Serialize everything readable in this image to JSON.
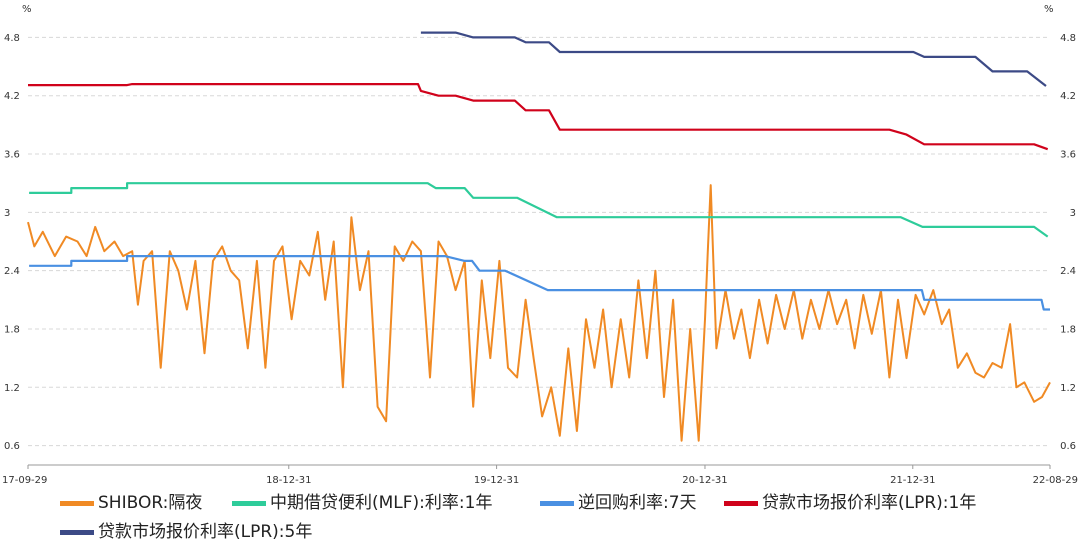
{
  "chart_data": {
    "type": "line",
    "units": {
      "left": "%",
      "right": "%"
    },
    "x_ticks": [
      "17-09-29",
      "18-12-31",
      "19-12-31",
      "20-12-31",
      "21-12-31",
      "22-08-29"
    ],
    "y_ticks": [
      "0.6",
      "1.2",
      "1.8",
      "2.4",
      "3",
      "3.6",
      "4.2",
      "4.8"
    ],
    "ylim": [
      0.4,
      5.0
    ],
    "grid": true,
    "legend_position": "bottom",
    "series": [
      {
        "name": "SHIBOR:隔夜",
        "color": "#f08a24",
        "points": [
          [
            "2017-09-29",
            2.9
          ],
          [
            "2017-10-10",
            2.65
          ],
          [
            "2017-10-25",
            2.8
          ],
          [
            "2017-11-15",
            2.55
          ],
          [
            "2017-12-05",
            2.75
          ],
          [
            "2017-12-25",
            2.7
          ],
          [
            "2018-01-10",
            2.55
          ],
          [
            "2018-01-25",
            2.85
          ],
          [
            "2018-02-10",
            2.6
          ],
          [
            "2018-02-28",
            2.7
          ],
          [
            "2018-03-15",
            2.55
          ],
          [
            "2018-03-31",
            2.6
          ],
          [
            "2018-04-10",
            2.05
          ],
          [
            "2018-04-20",
            2.5
          ],
          [
            "2018-05-05",
            2.6
          ],
          [
            "2018-05-20",
            1.4
          ],
          [
            "2018-06-05",
            2.6
          ],
          [
            "2018-06-20",
            2.4
          ],
          [
            "2018-07-05",
            2.0
          ],
          [
            "2018-07-20",
            2.5
          ],
          [
            "2018-08-05",
            1.55
          ],
          [
            "2018-08-20",
            2.5
          ],
          [
            "2018-09-05",
            2.65
          ],
          [
            "2018-09-20",
            2.4
          ],
          [
            "2018-10-05",
            2.3
          ],
          [
            "2018-10-20",
            1.6
          ],
          [
            "2018-11-05",
            2.5
          ],
          [
            "2018-11-20",
            1.4
          ],
          [
            "2018-12-05",
            2.5
          ],
          [
            "2018-12-20",
            2.65
          ],
          [
            "2019-01-05",
            1.9
          ],
          [
            "2019-01-20",
            2.5
          ],
          [
            "2019-02-05",
            2.35
          ],
          [
            "2019-02-20",
            2.8
          ],
          [
            "2019-03-05",
            2.1
          ],
          [
            "2019-03-20",
            2.7
          ],
          [
            "2019-04-05",
            1.2
          ],
          [
            "2019-04-20",
            2.95
          ],
          [
            "2019-05-05",
            2.2
          ],
          [
            "2019-05-20",
            2.6
          ],
          [
            "2019-06-05",
            1.0
          ],
          [
            "2019-06-20",
            0.85
          ],
          [
            "2019-07-05",
            2.65
          ],
          [
            "2019-07-20",
            2.5
          ],
          [
            "2019-08-05",
            2.7
          ],
          [
            "2019-08-20",
            2.6
          ],
          [
            "2019-09-05",
            1.3
          ],
          [
            "2019-09-20",
            2.7
          ],
          [
            "2019-10-05",
            2.55
          ],
          [
            "2019-10-20",
            2.2
          ],
          [
            "2019-11-05",
            2.5
          ],
          [
            "2019-11-20",
            1.0
          ],
          [
            "2019-12-05",
            2.3
          ],
          [
            "2019-12-20",
            1.5
          ],
          [
            "2020-01-05",
            2.5
          ],
          [
            "2020-01-20",
            1.4
          ],
          [
            "2020-02-05",
            1.3
          ],
          [
            "2020-02-20",
            2.1
          ],
          [
            "2020-03-05",
            1.5
          ],
          [
            "2020-03-20",
            0.9
          ],
          [
            "2020-04-05",
            1.2
          ],
          [
            "2020-04-20",
            0.7
          ],
          [
            "2020-05-05",
            1.6
          ],
          [
            "2020-05-20",
            0.75
          ],
          [
            "2020-06-05",
            1.9
          ],
          [
            "2020-06-20",
            1.4
          ],
          [
            "2020-07-05",
            2.0
          ],
          [
            "2020-07-20",
            1.2
          ],
          [
            "2020-08-05",
            1.9
          ],
          [
            "2020-08-20",
            1.3
          ],
          [
            "2020-09-05",
            2.3
          ],
          [
            "2020-09-20",
            1.5
          ],
          [
            "2020-10-05",
            2.4
          ],
          [
            "2020-10-20",
            1.1
          ],
          [
            "2020-11-05",
            2.1
          ],
          [
            "2020-11-20",
            0.65
          ],
          [
            "2020-12-05",
            1.8
          ],
          [
            "2020-12-20",
            0.65
          ],
          [
            "2020-12-31",
            1.9
          ],
          [
            "2021-01-05",
            2.6
          ],
          [
            "2021-01-10",
            3.28
          ],
          [
            "2021-01-20",
            1.6
          ],
          [
            "2021-02-05",
            2.2
          ],
          [
            "2021-02-20",
            1.7
          ],
          [
            "2021-03-05",
            2.0
          ],
          [
            "2021-03-20",
            1.5
          ],
          [
            "2021-04-05",
            2.1
          ],
          [
            "2021-04-20",
            1.65
          ],
          [
            "2021-05-05",
            2.15
          ],
          [
            "2021-05-20",
            1.8
          ],
          [
            "2021-06-05",
            2.2
          ],
          [
            "2021-06-20",
            1.7
          ],
          [
            "2021-07-05",
            2.1
          ],
          [
            "2021-07-20",
            1.8
          ],
          [
            "2021-08-05",
            2.2
          ],
          [
            "2021-08-20",
            1.85
          ],
          [
            "2021-09-05",
            2.1
          ],
          [
            "2021-09-20",
            1.6
          ],
          [
            "2021-10-05",
            2.15
          ],
          [
            "2021-10-20",
            1.75
          ],
          [
            "2021-11-05",
            2.2
          ],
          [
            "2021-11-20",
            1.3
          ],
          [
            "2021-12-05",
            2.1
          ],
          [
            "2021-12-20",
            1.5
          ],
          [
            "2022-01-05",
            2.15
          ],
          [
            "2022-01-20",
            1.95
          ],
          [
            "2022-02-05",
            2.2
          ],
          [
            "2022-02-20",
            1.85
          ],
          [
            "2022-03-05",
            2.0
          ],
          [
            "2022-03-20",
            1.4
          ],
          [
            "2022-04-05",
            1.55
          ],
          [
            "2022-04-20",
            1.35
          ],
          [
            "2022-05-05",
            1.3
          ],
          [
            "2022-05-20",
            1.45
          ],
          [
            "2022-06-05",
            1.4
          ],
          [
            "2022-06-20",
            1.85
          ],
          [
            "2022-07-01",
            1.2
          ],
          [
            "2022-07-15",
            1.25
          ],
          [
            "2022-08-01",
            1.05
          ],
          [
            "2022-08-15",
            1.1
          ],
          [
            "2022-08-29",
            1.25
          ]
        ]
      },
      {
        "name": "中期借贷便利(MLF):利率:1年",
        "color": "#2ecc9a",
        "points": [
          [
            "2017-10-01",
            3.2
          ],
          [
            "2017-12-14",
            3.2
          ],
          [
            "2017-12-14",
            3.25
          ],
          [
            "2018-03-22",
            3.25
          ],
          [
            "2018-03-22",
            3.3
          ],
          [
            "2019-09-01",
            3.3
          ],
          [
            "2019-09-15",
            3.25
          ],
          [
            "2019-11-05",
            3.25
          ],
          [
            "2019-11-20",
            3.15
          ],
          [
            "2020-02-05",
            3.15
          ],
          [
            "2020-04-15",
            2.95
          ],
          [
            "2021-12-10",
            2.95
          ],
          [
            "2022-01-17",
            2.85
          ],
          [
            "2022-08-01",
            2.85
          ],
          [
            "2022-08-25",
            2.75
          ]
        ]
      },
      {
        "name": "逆回购利率:7天",
        "color": "#4a90e2",
        "points": [
          [
            "2017-10-01",
            2.45
          ],
          [
            "2017-12-14",
            2.45
          ],
          [
            "2017-12-14",
            2.5
          ],
          [
            "2018-03-22",
            2.5
          ],
          [
            "2018-03-22",
            2.55
          ],
          [
            "2019-10-01",
            2.55
          ],
          [
            "2019-11-05",
            2.5
          ],
          [
            "2019-11-18",
            2.5
          ],
          [
            "2019-12-01",
            2.4
          ],
          [
            "2020-01-15",
            2.4
          ],
          [
            "2020-03-30",
            2.2
          ],
          [
            "2022-01-16",
            2.2
          ],
          [
            "2022-01-20",
            2.1
          ],
          [
            "2022-08-14",
            2.1
          ],
          [
            "2022-08-18",
            2.0
          ],
          [
            "2022-08-29",
            2.0
          ]
        ]
      },
      {
        "name": "贷款市场报价利率(LPR):1年",
        "color": "#d0021b",
        "points": [
          [
            "2017-09-29",
            4.31
          ],
          [
            "2018-03-22",
            4.31
          ],
          [
            "2018-03-31",
            4.32
          ],
          [
            "2019-08-15",
            4.32
          ],
          [
            "2019-08-20",
            4.25
          ],
          [
            "2019-09-20",
            4.2
          ],
          [
            "2019-10-20",
            4.2
          ],
          [
            "2019-11-20",
            4.15
          ],
          [
            "2020-02-01",
            4.15
          ],
          [
            "2020-02-20",
            4.05
          ],
          [
            "2020-04-01",
            4.05
          ],
          [
            "2020-04-20",
            3.85
          ],
          [
            "2021-11-20",
            3.85
          ],
          [
            "2021-12-20",
            3.8
          ],
          [
            "2022-01-20",
            3.7
          ],
          [
            "2022-08-01",
            3.7
          ],
          [
            "2022-08-25",
            3.65
          ]
        ]
      },
      {
        "name": "贷款市场报价利率(LPR):5年",
        "color": "#3c4a86",
        "points": [
          [
            "2019-08-20",
            4.85
          ],
          [
            "2019-10-20",
            4.85
          ],
          [
            "2019-11-20",
            4.8
          ],
          [
            "2020-02-01",
            4.8
          ],
          [
            "2020-02-20",
            4.75
          ],
          [
            "2020-04-01",
            4.75
          ],
          [
            "2020-04-20",
            4.65
          ],
          [
            "2022-01-01",
            4.65
          ],
          [
            "2022-01-20",
            4.6
          ],
          [
            "2022-04-20",
            4.6
          ],
          [
            "2022-05-20",
            4.45
          ],
          [
            "2022-07-20",
            4.45
          ],
          [
            "2022-08-22",
            4.3
          ]
        ]
      }
    ]
  }
}
